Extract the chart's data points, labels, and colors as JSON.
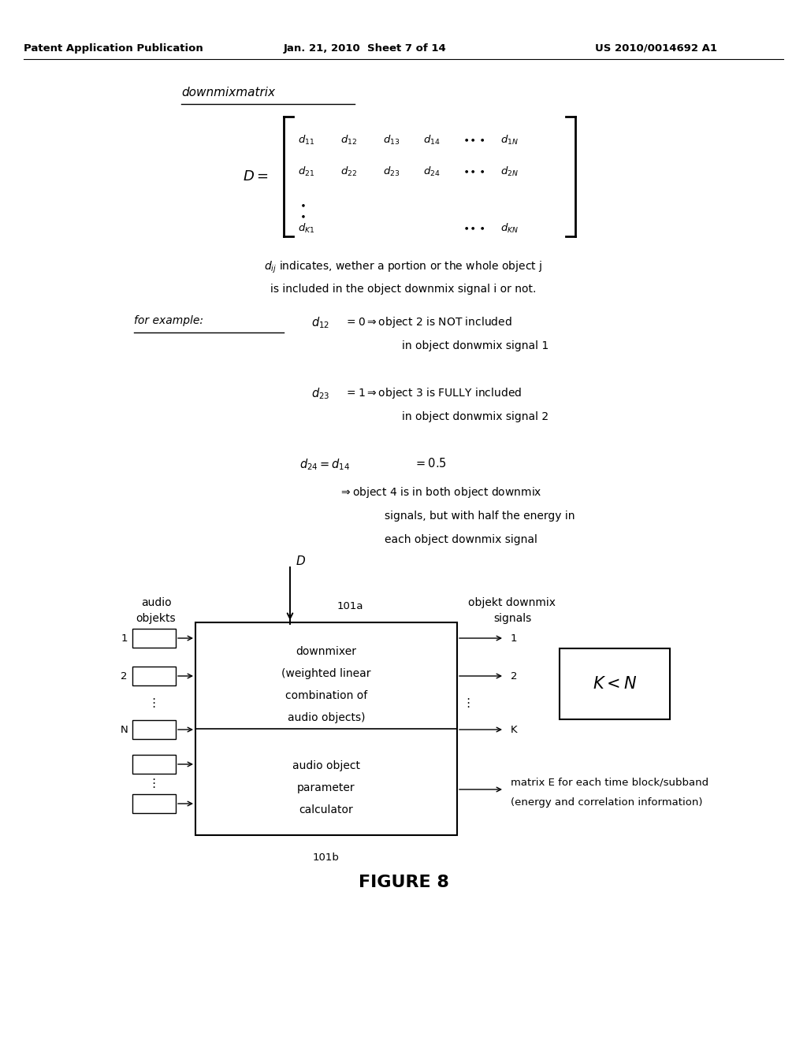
{
  "bg_color": "#ffffff",
  "header_left": "Patent Application Publication",
  "header_mid": "Jan. 21, 2010  Sheet 7 of 14",
  "header_right": "US 2010/0014692 A1",
  "section_label": "downmixmatrix",
  "figure_label": "FIGURE 8",
  "input_labels": [
    "1",
    "2",
    "N"
  ],
  "output_labels": [
    "1",
    "2",
    "K"
  ],
  "diag_audio_label1": "audio",
  "diag_audio_label2": "objekts",
  "diag_101a": "101a",
  "diag_downmixer_line1": "downmixer",
  "diag_downmixer_line2": "(weighted linear",
  "diag_downmixer_line3": "combination of",
  "diag_downmixer_line4": "audio objects)",
  "diag_objekt_label1": "objekt downmix",
  "diag_objekt_label2": "signals",
  "diag_param_line1": "audio object",
  "diag_param_line2": "parameter",
  "diag_param_line3": "calculator",
  "diag_matrix_out1": "matrix E for each time block/subband",
  "diag_matrix_out2": "(energy and correlation information)",
  "diag_101b": "101b"
}
